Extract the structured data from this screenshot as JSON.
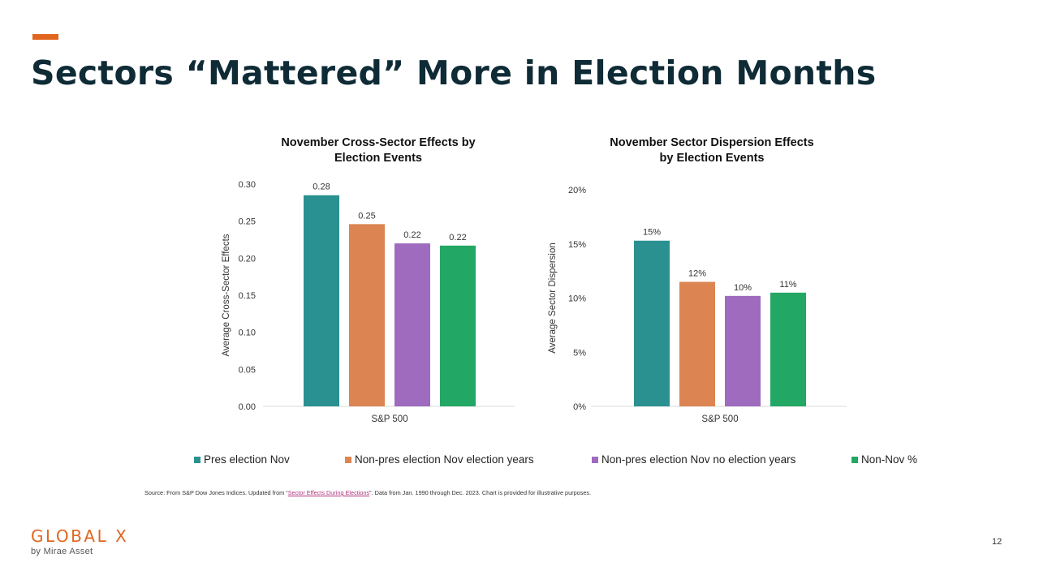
{
  "slide": {
    "title": "Sectors “Mattered” More in Election Months",
    "page_number": "12",
    "accent_color": "#E0661F",
    "title_color": "#0E2B36"
  },
  "legend": [
    {
      "label": "Pres election Nov",
      "color": "#2A9090"
    },
    {
      "label": "Non-pres election Nov election years",
      "color": "#DC8552"
    },
    {
      "label": "Non-pres election Nov no election years",
      "color": "#9E6BBF"
    },
    {
      "label": "Non-Nov %",
      "color": "#23A765"
    }
  ],
  "source": {
    "prefix": "Source: From S&P Dow Jones Indices. Updated from “",
    "link_text": "Sector Effects During Elections",
    "suffix": "”. Data from Jan. 1990 through Dec. 2023.  Chart is provided for illustrative purposes.",
    "link_color": "#B0357F"
  },
  "brand": {
    "name": "GLOBAL X",
    "sub": "by Mirae Asset",
    "color": "#E0661F"
  },
  "chart_data": [
    {
      "type": "bar",
      "title": "November Cross-Sector Effects by Election Events",
      "title_lines": [
        "November Cross-Sector Effects by",
        "Election Events"
      ],
      "categories": [
        "S&P 500"
      ],
      "ylabel": "Average Cross-Sector Effects",
      "xlabel": "",
      "ylim": [
        0,
        0.3
      ],
      "yticks": [
        "0.00",
        "0.05",
        "0.10",
        "0.15",
        "0.20",
        "0.25",
        "0.30"
      ],
      "ytick_values": [
        0,
        0.05,
        0.1,
        0.15,
        0.2,
        0.25,
        0.3
      ],
      "grid": false,
      "series": [
        {
          "name": "Pres election Nov",
          "values": [
            0.285
          ],
          "data_label": "0.28"
        },
        {
          "name": "Non-pres election Nov election years",
          "values": [
            0.246
          ],
          "data_label": "0.25"
        },
        {
          "name": "Non-pres election Nov no election years",
          "values": [
            0.22
          ],
          "data_label": "0.22"
        },
        {
          "name": "Non-Nov %",
          "values": [
            0.217
          ],
          "data_label": "0.22"
        }
      ]
    },
    {
      "type": "bar",
      "title": "November Sector Dispersion Effects by Election Events",
      "title_lines": [
        "November Sector Dispersion Effects",
        "by Election Events"
      ],
      "categories": [
        "S&P 500"
      ],
      "ylabel": "Average Sector Dispersion",
      "xlabel": "",
      "ylim": [
        0,
        0.2
      ],
      "yticks": [
        "0%",
        "5%",
        "10%",
        "15%",
        "20%"
      ],
      "ytick_values": [
        0,
        0.05,
        0.1,
        0.15,
        0.2
      ],
      "grid": false,
      "series": [
        {
          "name": "Pres election Nov",
          "values": [
            0.153
          ],
          "data_label": "15%"
        },
        {
          "name": "Non-pres election Nov election years",
          "values": [
            0.115
          ],
          "data_label": "12%"
        },
        {
          "name": "Non-pres election Nov no election years",
          "values": [
            0.102
          ],
          "data_label": "10%"
        },
        {
          "name": "Non-Nov %",
          "values": [
            0.105
          ],
          "data_label": "11%"
        }
      ]
    }
  ]
}
